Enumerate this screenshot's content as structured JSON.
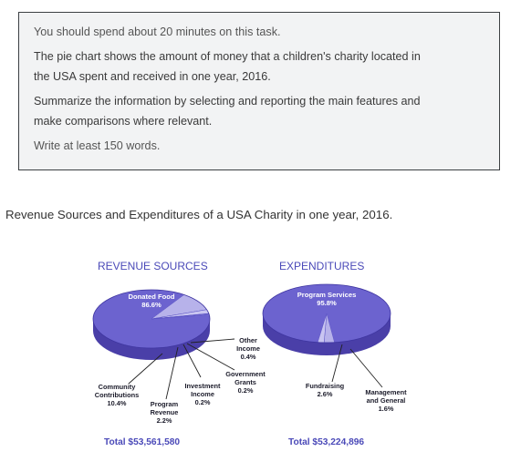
{
  "task": {
    "time_note": "You should spend about 20 minutes on this task.",
    "description_line1": "The pie chart shows the amount of money that a children's charity located in",
    "description_line2": "the USA spent and received in one year, 2016.",
    "instruction_line1": "Summarize the information by selecting and reporting the main features and",
    "instruction_line2": "make comparisons where relevant.",
    "word_count": "Write at least 150 words."
  },
  "figure_title": "Revenue Sources and Expenditures of a USA Charity in one year, 2016.",
  "colors": {
    "pie_top_main": "#6c63cf",
    "pie_side": "#4a3fa8",
    "pie_light": "#b7b2ea",
    "title_text": "#4a49b8"
  },
  "chart_data": [
    {
      "type": "pie",
      "title": "REVENUE SOURCES",
      "total": "Total $53,561,580",
      "slices": [
        {
          "name": "Donated Food",
          "value": 86.6,
          "value_label": "86.6%"
        },
        {
          "name": "Community Contributions",
          "value": 10.4,
          "value_label": "10.4%"
        },
        {
          "name": "Program Revenue",
          "value": 2.2,
          "value_label": "2.2%"
        },
        {
          "name": "Investment Income",
          "value": 0.2,
          "value_label": "0.2%"
        },
        {
          "name": "Government Grants",
          "value": 0.2,
          "value_label": "0.2%"
        },
        {
          "name": "Other Income",
          "value": 0.4,
          "value_label": "0.4%"
        }
      ]
    },
    {
      "type": "pie",
      "title": "EXPENDITURES",
      "total": "Total $53,224,896",
      "slices": [
        {
          "name": "Program Services",
          "value": 95.8,
          "value_label": "95.8%"
        },
        {
          "name": "Fundraising",
          "value": 2.6,
          "value_label": "2.6%"
        },
        {
          "name": "Management and General",
          "value": 1.6,
          "value_label": "1.6%"
        }
      ]
    }
  ],
  "labels": {
    "rev_donated_1": "Donated Food",
    "rev_donated_2": "86.6%",
    "rev_other_1": "Other",
    "rev_other_2": "Income",
    "rev_other_3": "0.4%",
    "rev_gov_1": "Government",
    "rev_gov_2": "Grants",
    "rev_gov_3": "0.2%",
    "rev_inv_1": "Investment",
    "rev_inv_2": "Income",
    "rev_inv_3": "0.2%",
    "rev_comm_1": "Community",
    "rev_comm_2": "Contributions",
    "rev_comm_3": "10.4%",
    "rev_prog_1": "Program",
    "rev_prog_2": "Revenue",
    "rev_prog_3": "2.2%",
    "exp_program_1": "Program Services",
    "exp_program_2": "95.8%",
    "exp_fund_1": "Fundraising",
    "exp_fund_2": "2.6%",
    "exp_mgmt_1": "Management",
    "exp_mgmt_2": "and General",
    "exp_mgmt_3": "1.6%"
  }
}
